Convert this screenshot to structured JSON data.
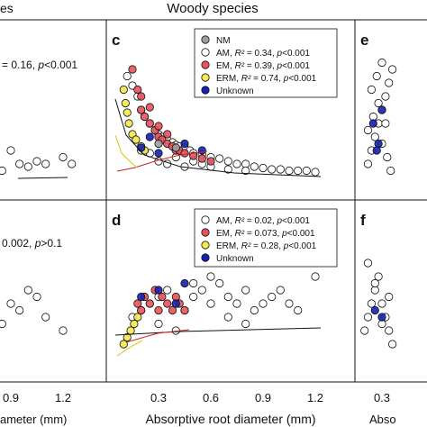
{
  "header": {
    "left_fragment": "es",
    "center_title": "Woody species"
  },
  "colors": {
    "NM": "#9e9e9e",
    "AM": "#ffffff",
    "EM": "#e8525a",
    "ERM": "#f2e94e",
    "Unknown": "#1520b5"
  },
  "x_tick_labels": [
    "0.3",
    "0.6",
    "0.9",
    "1.2"
  ],
  "left_x_tick_labels": [
    "0.9",
    "1.2"
  ],
  "xlabel_center": "Absorptive root diameter (mm)",
  "xlabel_left_fragment": "ameter (mm)",
  "xlabel_right_fragment": "Abso",
  "chart_data": [
    {
      "panel": "left-top-partial",
      "type": "scatter",
      "annotation": "= 0.16, p<0.001",
      "x": [
        0.75,
        0.8,
        0.85,
        0.9,
        0.95,
        1.0,
        1.05,
        1.1,
        1.2,
        1.25
      ],
      "y": [
        0.2,
        0.25,
        0.15,
        0.3,
        0.2,
        0.18,
        0.22,
        0.2,
        0.25,
        0.2
      ]
    },
    {
      "panel": "c",
      "label": "c",
      "type": "scatter",
      "legend": [
        {
          "group": "NM",
          "text": "NM"
        },
        {
          "group": "AM",
          "text": "AM, R² = 0.34, p<0.001"
        },
        {
          "group": "EM",
          "text": "EM, R² = 0.39, p<0.001"
        },
        {
          "group": "ERM",
          "text": "ERM, R² = 0.74, p<0.001"
        },
        {
          "group": "Unknown",
          "text": "Unknown"
        }
      ],
      "series": [
        {
          "group": "AM",
          "x": [
            0.12,
            0.15,
            0.18,
            0.2,
            0.22,
            0.25,
            0.28,
            0.3,
            0.32,
            0.35,
            0.38,
            0.4,
            0.42,
            0.45,
            0.48,
            0.5,
            0.55,
            0.6,
            0.65,
            0.7,
            0.75,
            0.8,
            0.85,
            0.9,
            0.95,
            1.0,
            1.05,
            1.1,
            1.15,
            1.2,
            0.2,
            0.25,
            0.3,
            0.35,
            0.4,
            0.45,
            0.5,
            0.55,
            0.6,
            0.7,
            0.8
          ],
          "y": [
            0.85,
            0.78,
            0.7,
            0.6,
            0.55,
            0.5,
            0.45,
            0.42,
            0.4,
            0.38,
            0.36,
            0.34,
            0.33,
            0.32,
            0.3,
            0.28,
            0.27,
            0.25,
            0.24,
            0.22,
            0.2,
            0.2,
            0.18,
            0.17,
            0.16,
            0.16,
            0.15,
            0.15,
            0.15,
            0.14,
            0.3,
            0.28,
            0.22,
            0.2,
            0.25,
            0.18,
            0.22,
            0.2,
            0.18,
            0.16,
            0.15
          ]
        },
        {
          "group": "EM",
          "x": [
            0.15,
            0.18,
            0.2,
            0.22,
            0.25,
            0.28,
            0.3,
            0.32,
            0.35,
            0.38,
            0.4,
            0.42,
            0.45,
            0.5,
            0.55,
            0.6,
            0.2,
            0.25,
            0.3,
            0.35
          ],
          "y": [
            0.9,
            0.75,
            0.6,
            0.55,
            0.5,
            0.45,
            0.4,
            0.38,
            0.35,
            0.33,
            0.3,
            0.3,
            0.28,
            0.26,
            0.24,
            0.22,
            0.7,
            0.62,
            0.48,
            0.42
          ]
        },
        {
          "group": "ERM",
          "x": [
            0.1,
            0.11,
            0.12,
            0.13,
            0.15,
            0.17,
            0.2,
            0.22
          ],
          "y": [
            0.75,
            0.65,
            0.58,
            0.5,
            0.42,
            0.38,
            0.33,
            0.3
          ]
        },
        {
          "group": "NM",
          "x": [
            0.3,
            0.4
          ],
          "y": [
            0.35,
            0.32
          ]
        },
        {
          "group": "Unknown",
          "x": [
            0.2,
            0.3,
            0.45,
            0.55,
            0.25
          ],
          "y": [
            0.32,
            0.28,
            0.35,
            0.3,
            0.4
          ]
        }
      ]
    },
    {
      "panel": "e",
      "label": "e",
      "type": "scatter",
      "series": [
        {
          "group": "AM",
          "x": [
            0.22,
            0.24,
            0.26,
            0.28,
            0.3,
            0.32,
            0.34,
            0.36,
            0.22,
            0.25,
            0.28,
            0.3,
            0.33,
            0.35,
            0.24,
            0.27,
            0.3,
            0.32
          ],
          "y": [
            0.2,
            0.3,
            0.4,
            0.5,
            0.6,
            0.7,
            0.8,
            0.9,
            0.45,
            0.55,
            0.65,
            0.35,
            0.25,
            0.15,
            0.75,
            0.85,
            0.95,
            0.5
          ]
        },
        {
          "group": "Unknown",
          "x": [
            0.25,
            0.28,
            0.3,
            0.27
          ],
          "y": [
            0.5,
            0.35,
            0.6,
            0.3
          ]
        }
      ]
    },
    {
      "panel": "left-bottom-partial",
      "type": "scatter",
      "annotation": "0.002, p>0.1",
      "x": [
        0.75,
        0.8,
        0.85,
        0.9,
        1.0,
        1.1,
        1.2,
        0.95,
        1.05
      ],
      "y": [
        0.3,
        0.4,
        0.35,
        0.5,
        0.6,
        0.4,
        0.3,
        0.45,
        0.55
      ]
    },
    {
      "panel": "d",
      "label": "d",
      "type": "scatter",
      "legend": [
        {
          "group": "AM",
          "text": "AM, R² = 0.02, p<0.001"
        },
        {
          "group": "EM",
          "text": "EM, R² = 0.073, p<0.001"
        },
        {
          "group": "ERM",
          "text": "ERM, R² = 0.28, p<0.001"
        },
        {
          "group": "Unknown",
          "text": "Unknown"
        }
      ],
      "series": [
        {
          "group": "AM",
          "x": [
            0.15,
            0.2,
            0.25,
            0.3,
            0.35,
            0.4,
            0.45,
            0.5,
            0.55,
            0.6,
            0.65,
            0.7,
            0.75,
            0.8,
            0.85,
            0.9,
            0.95,
            1.0,
            1.05,
            1.1,
            1.2,
            0.3,
            0.4,
            0.5,
            0.6,
            0.7,
            0.8
          ],
          "y": [
            0.4,
            0.45,
            0.5,
            0.55,
            0.6,
            0.5,
            0.45,
            0.55,
            0.6,
            0.5,
            0.65,
            0.55,
            0.5,
            0.6,
            0.45,
            0.5,
            0.55,
            0.6,
            0.5,
            0.45,
            0.7,
            0.35,
            0.3,
            0.65,
            0.7,
            0.4,
            0.35
          ]
        },
        {
          "group": "EM",
          "x": [
            0.18,
            0.2,
            0.22,
            0.25,
            0.28,
            0.3,
            0.32,
            0.35,
            0.38,
            0.4,
            0.42,
            0.45
          ],
          "y": [
            0.5,
            0.45,
            0.55,
            0.5,
            0.6,
            0.45,
            0.55,
            0.5,
            0.45,
            0.55,
            0.5,
            0.45
          ]
        },
        {
          "group": "ERM",
          "x": [
            0.1,
            0.12,
            0.14,
            0.16,
            0.18
          ],
          "y": [
            0.2,
            0.25,
            0.3,
            0.35,
            0.4
          ]
        },
        {
          "group": "Unknown",
          "x": [
            0.2,
            0.3,
            0.4,
            0.45
          ],
          "y": [
            0.55,
            0.6,
            0.5,
            0.65
          ]
        }
      ]
    },
    {
      "panel": "f",
      "label": "f",
      "type": "scatter",
      "series": [
        {
          "group": "AM",
          "x": [
            0.2,
            0.22,
            0.24,
            0.26,
            0.28,
            0.3,
            0.32,
            0.34,
            0.36,
            0.22,
            0.26,
            0.3,
            0.34
          ],
          "y": [
            0.3,
            0.4,
            0.5,
            0.6,
            0.7,
            0.5,
            0.4,
            0.3,
            0.2,
            0.8,
            0.65,
            0.35,
            0.55
          ]
        },
        {
          "group": "Unknown",
          "x": [
            0.26,
            0.3
          ],
          "y": [
            0.45,
            0.4
          ]
        }
      ]
    }
  ]
}
